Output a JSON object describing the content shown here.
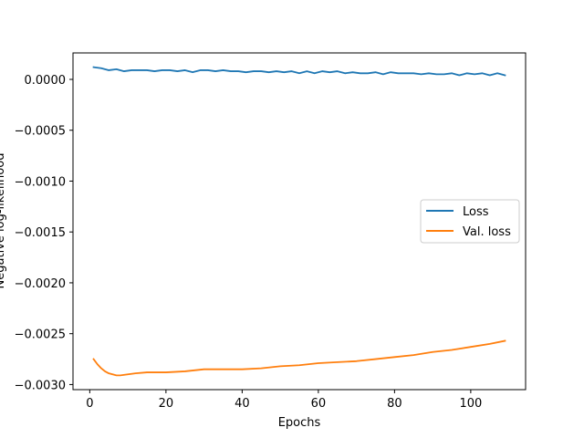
{
  "chart_data": {
    "type": "line",
    "xlabel": "Epochs",
    "ylabel": "Negative log-likelihood",
    "xlim": [
      -4.4,
      114.4
    ],
    "ylim": [
      -0.00305,
      0.00026
    ],
    "x_ticks": [
      0,
      20,
      40,
      60,
      80,
      100
    ],
    "x_tick_labels": [
      "0",
      "20",
      "40",
      "60",
      "80",
      "100"
    ],
    "y_ticks": [
      0.0,
      -0.0005,
      -0.001,
      -0.0015,
      -0.002,
      -0.0025,
      -0.003
    ],
    "y_tick_labels": [
      "0.0000",
      "−0.0005",
      "−0.0010",
      "−0.0015",
      "−0.0020",
      "−0.0025",
      "−0.0030"
    ],
    "grid": false,
    "legend_position": "center-right",
    "series": [
      {
        "name": "Loss",
        "color": "#1f77b4",
        "x": [
          1,
          3,
          5,
          7,
          9,
          11,
          13,
          15,
          17,
          19,
          21,
          23,
          25,
          27,
          29,
          31,
          33,
          35,
          37,
          39,
          41,
          43,
          45,
          47,
          49,
          51,
          53,
          55,
          57,
          59,
          61,
          63,
          65,
          67,
          69,
          71,
          73,
          75,
          77,
          79,
          81,
          83,
          85,
          87,
          89,
          91,
          93,
          95,
          97,
          99,
          101,
          103,
          105,
          107,
          109
        ],
        "y": [
          0.00012,
          0.00011,
          9e-05,
          0.0001,
          8e-05,
          9e-05,
          9e-05,
          9e-05,
          8e-05,
          9e-05,
          9e-05,
          8e-05,
          9e-05,
          7e-05,
          9e-05,
          9e-05,
          8e-05,
          9e-05,
          8e-05,
          8e-05,
          7e-05,
          8e-05,
          8e-05,
          7e-05,
          8e-05,
          7e-05,
          8e-05,
          6e-05,
          8e-05,
          6e-05,
          8e-05,
          7e-05,
          8e-05,
          6e-05,
          7e-05,
          6e-05,
          6e-05,
          7e-05,
          5e-05,
          7e-05,
          6e-05,
          6e-05,
          6e-05,
          5e-05,
          6e-05,
          5e-05,
          5e-05,
          6e-05,
          4e-05,
          6e-05,
          5e-05,
          6e-05,
          4e-05,
          6e-05,
          4e-05
        ]
      },
      {
        "name": "Val. loss",
        "color": "#ff7f0e",
        "x": [
          1,
          2,
          3,
          4,
          5,
          6,
          7,
          8,
          10,
          12,
          15,
          20,
          25,
          30,
          35,
          40,
          45,
          50,
          55,
          60,
          65,
          70,
          75,
          80,
          85,
          90,
          95,
          100,
          105,
          109
        ],
        "y": [
          -0.00275,
          -0.0028,
          -0.00284,
          -0.00287,
          -0.00289,
          -0.0029,
          -0.00291,
          -0.00291,
          -0.0029,
          -0.00289,
          -0.00288,
          -0.00288,
          -0.00287,
          -0.00285,
          -0.00285,
          -0.00285,
          -0.00284,
          -0.00282,
          -0.00281,
          -0.00279,
          -0.00278,
          -0.00277,
          -0.00275,
          -0.00273,
          -0.00271,
          -0.00268,
          -0.00266,
          -0.00263,
          -0.0026,
          -0.00257
        ]
      }
    ]
  }
}
